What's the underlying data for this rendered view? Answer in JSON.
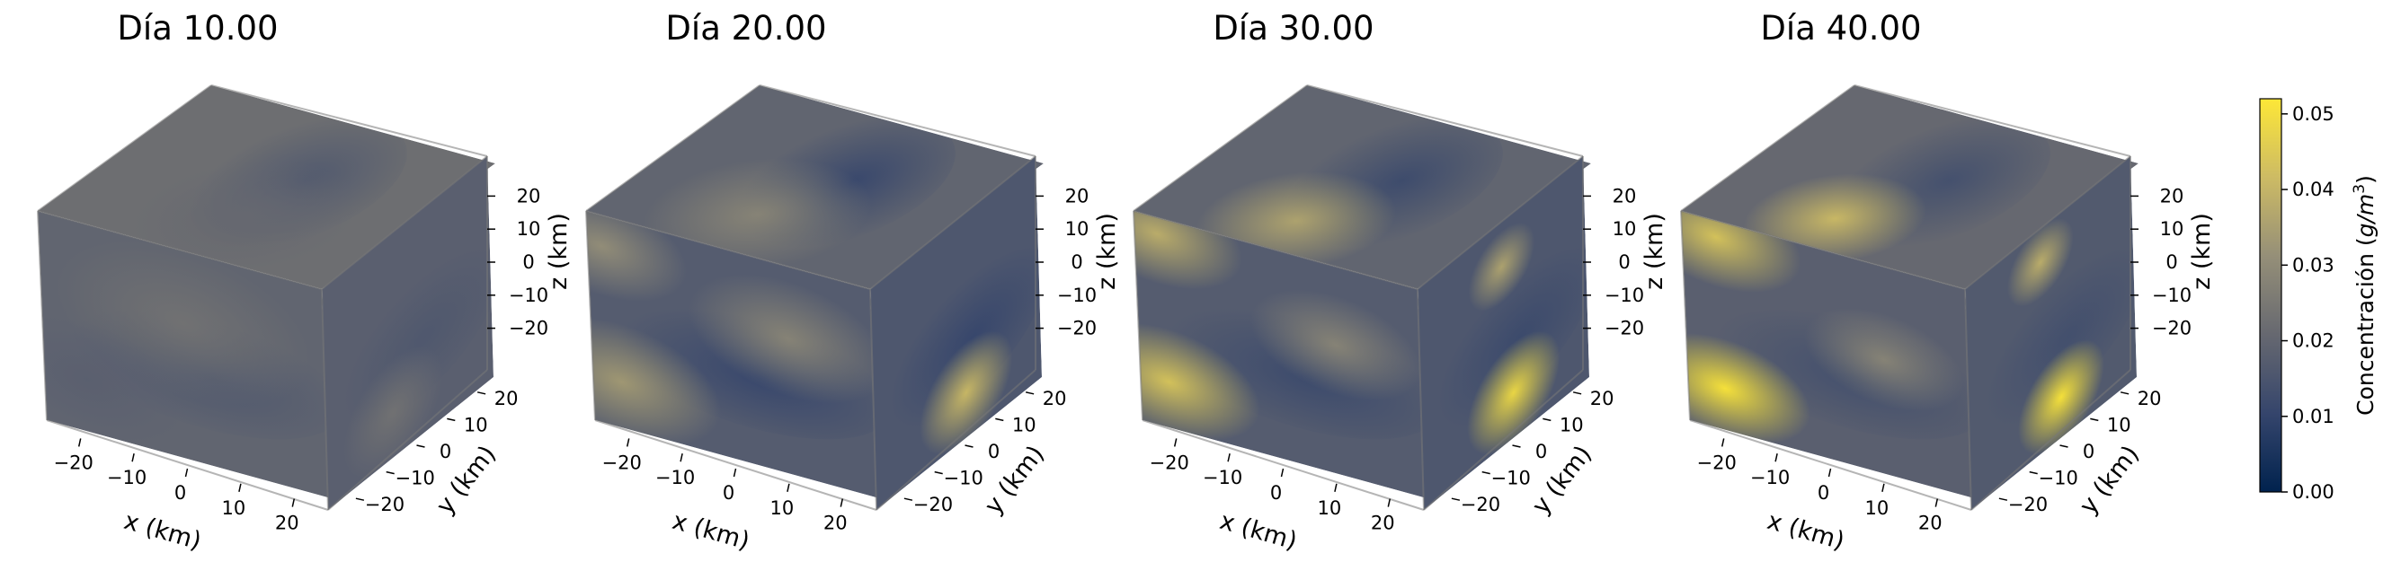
{
  "chart_data": {
    "type": "volume-3d",
    "colormap": "cividis",
    "grid": false,
    "axes": {
      "x": {
        "label": "x (km)",
        "ticks": [
          -20,
          -10,
          0,
          10,
          20
        ],
        "tick_labels": [
          "−20",
          "−10",
          "0",
          "10",
          "20"
        ],
        "range": [
          -25,
          25
        ]
      },
      "y": {
        "label": "y (km)",
        "ticks": [
          -20,
          -10,
          0,
          10,
          20
        ],
        "tick_labels": [
          "−20",
          "−10",
          "0",
          "10",
          "20"
        ],
        "range": [
          -25,
          25
        ]
      },
      "z": {
        "label": "z (km)",
        "ticks": [
          -20,
          -10,
          0,
          10,
          20
        ],
        "tick_labels": [
          "−20",
          "−10",
          "0",
          "10",
          "20"
        ],
        "range": [
          -25,
          25
        ]
      }
    },
    "panels": [
      {
        "title": "Día 10.00",
        "day": 10.0,
        "max_concentration": 0.03
      },
      {
        "title": "Día 20.00",
        "day": 20.0,
        "max_concentration": 0.04
      },
      {
        "title": "Día 30.00",
        "day": 30.0,
        "max_concentration": 0.046
      },
      {
        "title": "Día 40.00",
        "day": 40.0,
        "max_concentration": 0.052
      }
    ],
    "colorbar": {
      "label": "Concentración (g/m³)",
      "label_prefix": "Concentración (",
      "label_unit": "g/m",
      "label_exp": "3",
      "label_suffix": ")",
      "range": [
        0.0,
        0.052
      ],
      "ticks": [
        0.0,
        0.01,
        0.02,
        0.03,
        0.04,
        0.05
      ],
      "tick_labels": [
        "0.00",
        "0.01",
        "0.02",
        "0.03",
        "0.04",
        "0.05"
      ],
      "placement": "right"
    }
  }
}
